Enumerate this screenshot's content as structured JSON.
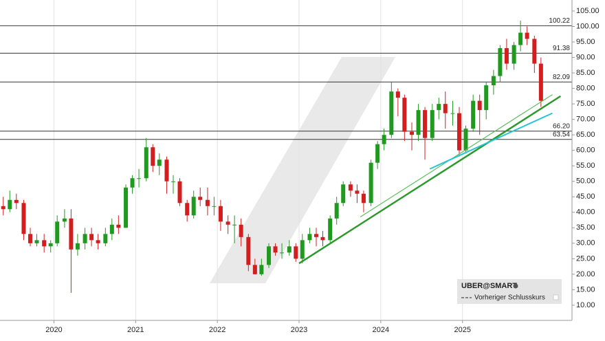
{
  "chart_data": {
    "type": "candlestick",
    "series": [
      {
        "name": "UBER@SMART",
        "up_color": "#1f9a1f",
        "down_color": "#d11f1f",
        "x": [
          2019.38,
          2019.46,
          2019.54,
          2019.63,
          2019.71,
          2019.79,
          2019.88,
          2019.96,
          2020.04,
          2020.13,
          2020.21,
          2020.29,
          2020.38,
          2020.46,
          2020.54,
          2020.63,
          2020.71,
          2020.79,
          2020.88,
          2020.96,
          2021.04,
          2021.13,
          2021.21,
          2021.29,
          2021.38,
          2021.46,
          2021.54,
          2021.63,
          2021.71,
          2021.79,
          2021.88,
          2021.96,
          2022.04,
          2022.13,
          2022.21,
          2022.29,
          2022.38,
          2022.46,
          2022.54,
          2022.63,
          2022.71,
          2022.79,
          2022.88,
          2022.96,
          2023.04,
          2023.13,
          2023.21,
          2023.29,
          2023.38,
          2023.46,
          2023.54,
          2023.63,
          2023.71,
          2023.79,
          2023.88,
          2023.96,
          2024.04,
          2024.13,
          2024.21,
          2024.29,
          2024.38,
          2024.46,
          2024.54,
          2024.63,
          2024.71,
          2024.79,
          2024.88,
          2024.96,
          2025.04,
          2025.13,
          2025.21,
          2025.29,
          2025.38,
          2025.46,
          2025.54,
          2025.63,
          2025.71,
          2025.79,
          2025.88,
          2025.96
        ],
        "open": [
          42,
          41,
          44,
          43,
          33,
          30,
          31,
          29,
          30,
          37,
          38,
          28,
          30,
          33,
          31,
          30,
          33,
          36,
          35,
          48,
          51,
          51,
          61,
          55,
          57,
          50,
          50,
          43,
          39,
          45,
          44,
          42,
          42,
          37,
          36,
          36,
          32,
          23,
          20,
          23,
          29,
          27,
          27,
          29,
          25,
          31,
          33,
          32,
          31,
          38,
          43,
          49,
          47,
          46,
          43,
          56,
          62,
          65,
          79,
          77,
          66,
          65,
          73,
          64,
          73,
          75,
          72,
          72,
          60,
          67,
          76,
          73,
          81,
          84,
          93,
          88,
          94,
          98,
          96,
          88
        ],
        "high": [
          45,
          47,
          46,
          44,
          35,
          33,
          33,
          31,
          39,
          41,
          41,
          33,
          35,
          35,
          33,
          35,
          38,
          39,
          49,
          52,
          54,
          64,
          62,
          59,
          58,
          52,
          51,
          44,
          47,
          48,
          48,
          45,
          44,
          39,
          39,
          38,
          33,
          25,
          25,
          30,
          30,
          30,
          31,
          30,
          33,
          35,
          35,
          34,
          39,
          45,
          50,
          50,
          49,
          47,
          57,
          63,
          67,
          82,
          80,
          78,
          69,
          75,
          74,
          75,
          77,
          79,
          76,
          74,
          68,
          78,
          78,
          82,
          86,
          94,
          96,
          95,
          101.9,
          100,
          97,
          90
        ],
        "low": [
          39,
          40,
          41,
          31,
          29,
          29,
          27,
          27,
          29,
          35,
          14,
          26,
          28,
          29,
          28,
          29,
          31,
          33,
          35,
          46,
          48,
          50,
          53,
          52,
          46,
          46,
          42,
          37,
          38,
          42,
          39,
          39,
          34,
          33,
          30,
          29,
          21,
          20,
          19.5,
          22,
          26,
          25,
          26,
          24,
          23.5,
          30,
          29,
          29,
          30,
          36,
          42,
          45,
          43,
          40,
          42,
          54,
          60,
          64,
          71,
          63,
          60,
          63,
          57,
          63,
          70,
          67,
          68,
          58,
          59,
          66,
          65,
          70,
          78,
          82,
          86,
          86,
          92,
          94,
          85,
          74
        ],
        "close": [
          41,
          44,
          43,
          33,
          30,
          31,
          29,
          30,
          37,
          38,
          28,
          30,
          33,
          31,
          30,
          33,
          36,
          35,
          48,
          51,
          51,
          61,
          55,
          57,
          50,
          50,
          43,
          39,
          45,
          44,
          42,
          42,
          37,
          36,
          36,
          32,
          23,
          20,
          23,
          29,
          27,
          27,
          29,
          25,
          31,
          33,
          32,
          31,
          38,
          43,
          49,
          47,
          46,
          43,
          56,
          62,
          65,
          79,
          77,
          66,
          65,
          73,
          64,
          73,
          75,
          72,
          72,
          60,
          67,
          76,
          73,
          81,
          84,
          93,
          88,
          94,
          98,
          96,
          88,
          76
        ]
      }
    ],
    "legend_extra": "Vorheriger Schlusskurs",
    "levels": [
      {
        "value": 100.22,
        "label": "100.22",
        "color": "#2b3bb0"
      },
      {
        "value": 91.38,
        "label": "91.38",
        "color": "#333333"
      },
      {
        "value": 82.09,
        "label": "82.09",
        "color": "#333333"
      },
      {
        "value": 66.2,
        "label": "66.20",
        "color": "#333333"
      },
      {
        "value": 63.54,
        "label": "63.54",
        "color": "#333333"
      }
    ],
    "trendlines": [
      {
        "color": "#2a9a2a",
        "width": 2.5,
        "points": [
          [
            2023.0,
            23.5
          ],
          [
            2026.2,
            77.5
          ]
        ]
      },
      {
        "color": "#5cbf5c",
        "width": 1.2,
        "points": [
          [
            2023.75,
            38.5
          ],
          [
            2026.1,
            78
          ]
        ]
      },
      {
        "color": "#27c3d6",
        "width": 2,
        "points": [
          [
            2024.6,
            54
          ],
          [
            2026.1,
            72
          ]
        ]
      }
    ],
    "xlim": [
      2019.34,
      2026.34
    ],
    "xticks": [
      2020,
      2021,
      2022,
      2023,
      2024,
      2025
    ],
    "ylim": [
      5.1,
      108.55
    ],
    "yticks": [
      {
        "value": 10,
        "label": "10.00"
      },
      {
        "value": 15,
        "label": "15.00"
      },
      {
        "value": 20,
        "label": "20.00"
      },
      {
        "value": 25,
        "label": "25.00"
      },
      {
        "value": 30,
        "label": "30.00"
      },
      {
        "value": 35,
        "label": "35.00"
      },
      {
        "value": 40,
        "label": "40.00"
      },
      {
        "value": 45,
        "label": "45.00"
      },
      {
        "value": 50,
        "label": "50.00"
      },
      {
        "value": 55,
        "label": "55.00"
      },
      {
        "value": 60,
        "label": "60.00"
      },
      {
        "value": 65,
        "label": "65.00"
      },
      {
        "value": 70,
        "label": "70.00"
      },
      {
        "value": 75,
        "label": "75.00"
      },
      {
        "value": 80,
        "label": "80.00"
      },
      {
        "value": 85,
        "label": "85.00"
      },
      {
        "value": 90,
        "label": "90.00"
      },
      {
        "value": 95,
        "label": "95.00"
      },
      {
        "value": 100,
        "label": "100.00"
      },
      {
        "value": 105,
        "label": "105.00"
      }
    ],
    "grid": true
  }
}
